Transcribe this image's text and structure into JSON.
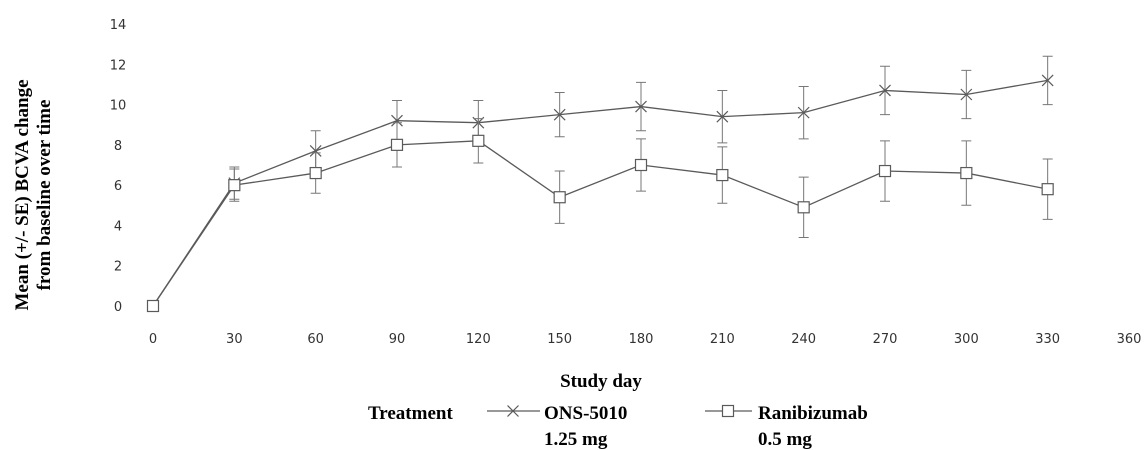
{
  "chart_data": {
    "type": "line",
    "xlabel": "Study day",
    "ylabel_lines": [
      "Mean (+/- SE) BCVA change",
      "from baseline over time"
    ],
    "xlim": [
      0,
      360
    ],
    "ylim": [
      0,
      14
    ],
    "x_ticks": [
      0,
      30,
      60,
      90,
      120,
      150,
      180,
      210,
      240,
      270,
      300,
      330,
      360
    ],
    "y_ticks": [
      0,
      2,
      4,
      6,
      8,
      10,
      12,
      14
    ],
    "grid": false,
    "legend": {
      "position": "bottom",
      "title": "Treatment",
      "entries": [
        {
          "line1": "ONS-5010",
          "line2": "1.25 mg",
          "marker": "x"
        },
        {
          "line1": "Ranibizumab",
          "line2": "0.5 mg",
          "marker": "square"
        }
      ]
    },
    "series": [
      {
        "name": "ONS-5010 1.25 mg",
        "marker": "x",
        "color": "#555555",
        "x": [
          0,
          30,
          60,
          90,
          120,
          150,
          180,
          210,
          240,
          270,
          300,
          330
        ],
        "y": [
          0,
          6.1,
          7.7,
          9.2,
          9.1,
          9.5,
          9.9,
          9.4,
          9.6,
          10.7,
          10.5,
          11.2
        ],
        "se": [
          0,
          0.8,
          1.0,
          1.0,
          1.1,
          1.1,
          1.2,
          1.3,
          1.3,
          1.2,
          1.2,
          1.2
        ]
      },
      {
        "name": "Ranibizumab 0.5 mg",
        "marker": "square",
        "color": "#555555",
        "x": [
          0,
          30,
          60,
          90,
          120,
          150,
          180,
          210,
          240,
          270,
          300,
          330
        ],
        "y": [
          0,
          6.0,
          6.6,
          8.0,
          8.2,
          5.4,
          7.0,
          6.5,
          4.9,
          6.7,
          6.6,
          5.8
        ],
        "se": [
          0,
          0.8,
          1.0,
          1.1,
          1.1,
          1.3,
          1.3,
          1.4,
          1.5,
          1.5,
          1.6,
          1.5
        ]
      }
    ]
  }
}
